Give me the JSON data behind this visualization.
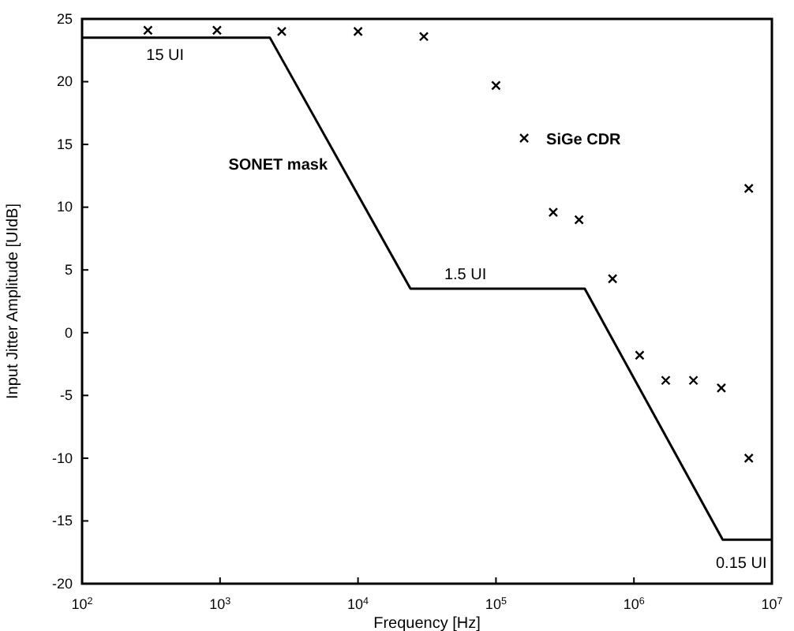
{
  "chart_data": {
    "type": "line",
    "xlabel": "Frequency [Hz]",
    "ylabel": "Input Jitter Amplitude  [UIdB]",
    "log": "x",
    "xlim": [
      100,
      10000000
    ],
    "ylim": [
      -20,
      25
    ],
    "xticks": [
      {
        "value": 100,
        "label": "10$^{2}$"
      },
      {
        "value": 1000,
        "label": "10$^{3}$"
      },
      {
        "value": 10000,
        "label": "10$^{4}$"
      },
      {
        "value": 100000,
        "label": "10$^{5}$"
      },
      {
        "value": 1000000,
        "label": "10$^{6}$"
      },
      {
        "value": 10000000,
        "label": "10$^{7}$"
      }
    ],
    "yticks": [
      -20,
      -15,
      -10,
      -5,
      0,
      5,
      10,
      15,
      20,
      25
    ],
    "grid": false,
    "legend": false,
    "series": [
      {
        "name": "SONET mask",
        "color": "#000000",
        "line_style": "solid",
        "marker": "none",
        "x": [
          100,
          2300,
          24000,
          440000,
          4400000,
          10000000
        ],
        "values": [
          23.5,
          23.5,
          3.5,
          3.5,
          -16.5,
          -16.5
        ]
      },
      {
        "name": "SiGe CDR",
        "type": "scatter",
        "color": "#000000",
        "marker": "cross",
        "x": [
          300,
          950,
          2800,
          10000,
          30000,
          100000,
          160000,
          260000,
          400000,
          700000,
          1100000,
          1700000,
          2700000,
          4300000,
          6800000,
          6800000
        ],
        "values": [
          24.1,
          24.1,
          24,
          24,
          23.6,
          19.7,
          15.5,
          9.6,
          9,
          4.3,
          -1.8,
          -3.8,
          -3.8,
          -4.4,
          11.5,
          -10
        ]
      }
    ],
    "annotations": [
      {
        "text": "15 UI",
        "x": 400,
        "y": 23.5
      },
      {
        "text": "1.5 UI",
        "x": 60000,
        "y": 3.5
      },
      {
        "text": "0.15 UI",
        "x": 6000000,
        "y": -16.5
      }
    ]
  }
}
